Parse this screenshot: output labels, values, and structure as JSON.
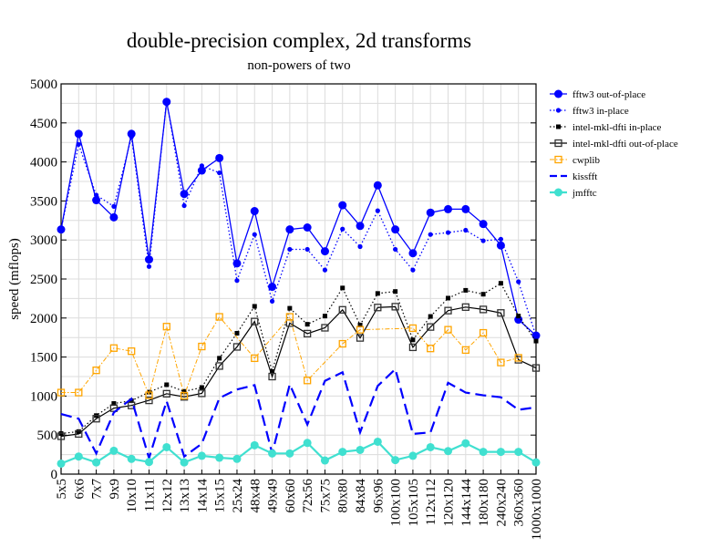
{
  "chart_data": {
    "type": "line",
    "title": "double-precision complex, 2d transforms",
    "subtitle": "non-powers of two",
    "xlabel": "",
    "ylabel": "speed (mflops)",
    "ylim": [
      0,
      5000
    ],
    "yticks": [
      0,
      500,
      1000,
      1500,
      2000,
      2500,
      3000,
      3500,
      4000,
      4500,
      5000
    ],
    "grid": true,
    "legend_position": "right",
    "categories": [
      "5x5",
      "6x6",
      "7x7",
      "9x9",
      "10x10",
      "11x11",
      "12x12",
      "13x13",
      "14x14",
      "15x15",
      "25x24",
      "48x48",
      "49x49",
      "60x60",
      "72x56",
      "75x75",
      "80x80",
      "84x84",
      "96x96",
      "100x100",
      "105x105",
      "112x112",
      "120x120",
      "144x144",
      "180x180",
      "240x240",
      "360x360",
      "1000x1000"
    ],
    "series": [
      {
        "name": "fftw3 out-of-place",
        "color": "#0000ff",
        "style": "solid-bigdot",
        "values": [
          3135,
          4360,
          3510,
          3290,
          4360,
          2750,
          4770,
          3590,
          3890,
          4050,
          2700,
          3370,
          2400,
          3135,
          3160,
          2855,
          3445,
          3180,
          3700,
          3135,
          2830,
          3350,
          3395,
          3395,
          3205,
          2930,
          1980,
          1775
        ]
      },
      {
        "name": "fftw3 in-place",
        "color": "#0000ff",
        "style": "dotted-dot",
        "values": [
          3135,
          4225,
          3575,
          3430,
          4320,
          2660,
          4790,
          3440,
          3950,
          3860,
          2480,
          3070,
          2215,
          2880,
          2880,
          2615,
          3140,
          2915,
          3375,
          2880,
          2615,
          3070,
          3095,
          3125,
          2990,
          3010,
          2465,
          1770
        ]
      },
      {
        "name": "intel-mkl-dfti in-place",
        "color": "#000000",
        "style": "dotted-filledsquare",
        "values": [
          520,
          545,
          750,
          905,
          940,
          1050,
          1145,
          1060,
          1110,
          1485,
          1805,
          2150,
          1315,
          2125,
          1920,
          2025,
          2385,
          1910,
          2315,
          2340,
          1720,
          2020,
          2255,
          2355,
          2305,
          2445,
          2025,
          1705
        ]
      },
      {
        "name": "intel-mkl-dfti out-of-place",
        "color": "#000000",
        "style": "solid-opensquare",
        "values": [
          485,
          515,
          710,
          845,
          880,
          945,
          1030,
          990,
          1035,
          1385,
          1630,
          1955,
          1250,
          1935,
          1800,
          1875,
          2105,
          1745,
          2135,
          2145,
          1625,
          1885,
          2095,
          2140,
          2110,
          2065,
          1465,
          1360
        ]
      },
      {
        "name": "cwplib",
        "color": "#ffa500",
        "style": "dashdot-opensquare",
        "values": [
          1045,
          1045,
          1330,
          1615,
          1575,
          1010,
          1890,
          1005,
          1635,
          2015,
          null,
          1485,
          null,
          2015,
          1200,
          null,
          1670,
          1850,
          null,
          null,
          1870,
          1610,
          1850,
          1590,
          1810,
          1430,
          1490,
          null
        ]
      },
      {
        "name": "kissfft",
        "color": "#0000ff",
        "style": "dashed",
        "values": [
          770,
          710,
          265,
          790,
          965,
          205,
          935,
          225,
          390,
          975,
          1085,
          1140,
          265,
          1150,
          635,
          1195,
          1305,
          535,
          1130,
          1345,
          515,
          535,
          1170,
          1045,
          1010,
          985,
          825,
          855
        ]
      },
      {
        "name": "jmfftc",
        "color": "#40e0d0",
        "style": "thick-bigdot",
        "values": [
          135,
          225,
          150,
          300,
          195,
          155,
          345,
          150,
          235,
          210,
          195,
          370,
          265,
          265,
          400,
          175,
          285,
          310,
          415,
          180,
          235,
          345,
          295,
          395,
          285,
          285,
          285,
          150
        ]
      }
    ]
  }
}
